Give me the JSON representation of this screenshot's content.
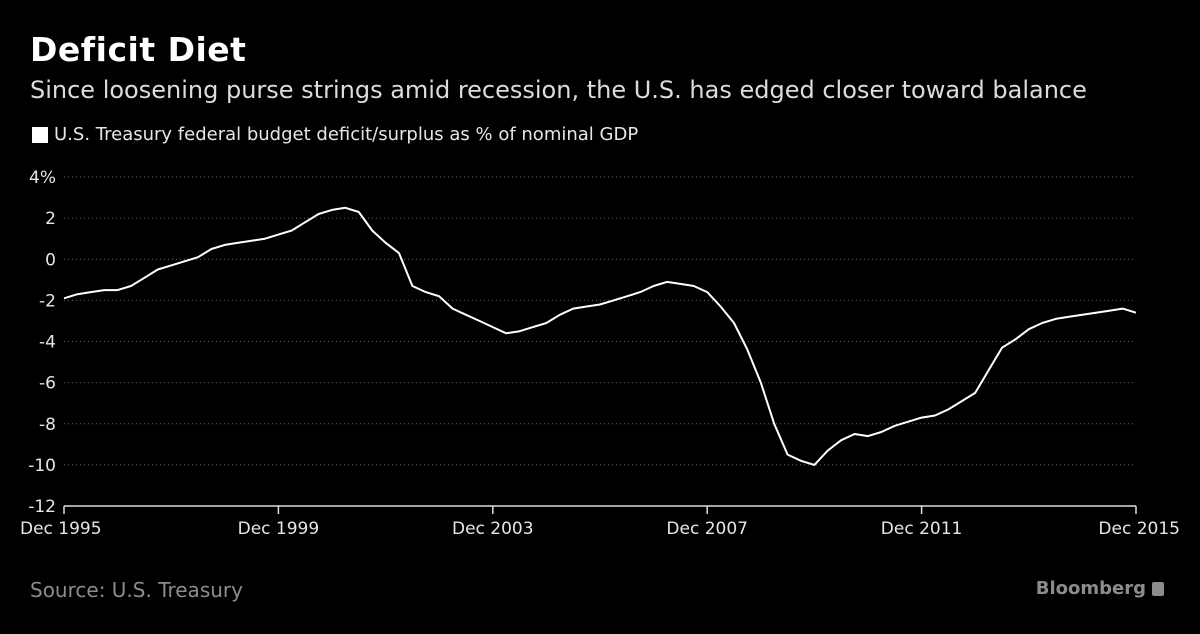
{
  "header": {
    "title": "Deficit Diet",
    "subtitle": "Since loosening purse strings amid recession, the U.S. has edged closer toward balance"
  },
  "legend": {
    "label": "U.S. Treasury federal budget deficit/surplus as % of nominal GDP"
  },
  "footer": {
    "source": "Source: U.S. Treasury",
    "brand": "Bloomberg"
  },
  "colors": {
    "background": "#000000",
    "line": "#ffffff",
    "grid": "#666666",
    "muted": "#8c8c8c"
  },
  "chart_data": {
    "type": "line",
    "title": "Deficit Diet",
    "subtitle": "Since loosening purse strings amid recession, the U.S. has edged closer toward balance",
    "xlabel": "",
    "ylabel": "",
    "ylim": [
      -12,
      4
    ],
    "xlim": [
      "1995-12",
      "2015-12"
    ],
    "y_ticks": [
      4,
      2,
      0,
      -2,
      -4,
      -6,
      -8,
      -10,
      -12
    ],
    "y_tick_labels": [
      "4%",
      "2",
      "0",
      "-2",
      "-4",
      "-6",
      "-8",
      "-10",
      "-12"
    ],
    "x_ticks": [
      "1995-12",
      "1999-12",
      "2003-12",
      "2007-12",
      "2011-12",
      "2015-12"
    ],
    "x_tick_labels": [
      "Dec 1995",
      "Dec 1999",
      "Dec 2003",
      "Dec 2007",
      "Dec 2011",
      "Dec 2015"
    ],
    "grid": "horizontal dotted",
    "legend_position": "top-left",
    "series": [
      {
        "name": "U.S. Treasury federal budget deficit/surplus as % of nominal GDP",
        "points": [
          [
            "1995-12",
            -1.9
          ],
          [
            "1996-03",
            -1.7
          ],
          [
            "1996-06",
            -1.6
          ],
          [
            "1996-09",
            -1.5
          ],
          [
            "1996-12",
            -1.5
          ],
          [
            "1997-03",
            -1.3
          ],
          [
            "1997-06",
            -0.9
          ],
          [
            "1997-09",
            -0.5
          ],
          [
            "1997-12",
            -0.3
          ],
          [
            "1998-03",
            -0.1
          ],
          [
            "1998-06",
            0.1
          ],
          [
            "1998-09",
            0.5
          ],
          [
            "1998-12",
            0.7
          ],
          [
            "1999-03",
            0.8
          ],
          [
            "1999-06",
            0.9
          ],
          [
            "1999-09",
            1.0
          ],
          [
            "1999-12",
            1.2
          ],
          [
            "2000-03",
            1.4
          ],
          [
            "2000-06",
            1.8
          ],
          [
            "2000-09",
            2.2
          ],
          [
            "2000-12",
            2.4
          ],
          [
            "2001-03",
            2.5
          ],
          [
            "2001-06",
            2.3
          ],
          [
            "2001-09",
            1.4
          ],
          [
            "2001-12",
            0.8
          ],
          [
            "2002-03",
            0.3
          ],
          [
            "2002-06",
            -1.3
          ],
          [
            "2002-09",
            -1.6
          ],
          [
            "2002-12",
            -1.8
          ],
          [
            "2003-03",
            -2.4
          ],
          [
            "2003-06",
            -2.7
          ],
          [
            "2003-09",
            -3.0
          ],
          [
            "2003-12",
            -3.3
          ],
          [
            "2004-03",
            -3.6
          ],
          [
            "2004-06",
            -3.5
          ],
          [
            "2004-09",
            -3.3
          ],
          [
            "2004-12",
            -3.1
          ],
          [
            "2005-03",
            -2.7
          ],
          [
            "2005-06",
            -2.4
          ],
          [
            "2005-09",
            -2.3
          ],
          [
            "2005-12",
            -2.2
          ],
          [
            "2006-03",
            -2.0
          ],
          [
            "2006-06",
            -1.8
          ],
          [
            "2006-09",
            -1.6
          ],
          [
            "2006-12",
            -1.3
          ],
          [
            "2007-03",
            -1.1
          ],
          [
            "2007-06",
            -1.2
          ],
          [
            "2007-09",
            -1.3
          ],
          [
            "2007-12",
            -1.6
          ],
          [
            "2008-03",
            -2.3
          ],
          [
            "2008-06",
            -3.1
          ],
          [
            "2008-09",
            -4.4
          ],
          [
            "2008-12",
            -6.0
          ],
          [
            "2009-03",
            -8.0
          ],
          [
            "2009-06",
            -9.5
          ],
          [
            "2009-09",
            -9.8
          ],
          [
            "2009-12",
            -10.0
          ],
          [
            "2010-03",
            -9.3
          ],
          [
            "2010-06",
            -8.8
          ],
          [
            "2010-09",
            -8.5
          ],
          [
            "2010-12",
            -8.6
          ],
          [
            "2011-03",
            -8.4
          ],
          [
            "2011-06",
            -8.1
          ],
          [
            "2011-09",
            -7.9
          ],
          [
            "2011-12",
            -7.7
          ],
          [
            "2012-03",
            -7.6
          ],
          [
            "2012-06",
            -7.3
          ],
          [
            "2012-09",
            -6.9
          ],
          [
            "2012-12",
            -6.5
          ],
          [
            "2013-03",
            -5.4
          ],
          [
            "2013-06",
            -4.3
          ],
          [
            "2013-09",
            -3.9
          ],
          [
            "2013-12",
            -3.4
          ],
          [
            "2014-03",
            -3.1
          ],
          [
            "2014-06",
            -2.9
          ],
          [
            "2014-09",
            -2.8
          ],
          [
            "2014-12",
            -2.7
          ],
          [
            "2015-03",
            -2.6
          ],
          [
            "2015-06",
            -2.5
          ],
          [
            "2015-09",
            -2.4
          ],
          [
            "2015-12",
            -2.6
          ]
        ]
      }
    ]
  }
}
